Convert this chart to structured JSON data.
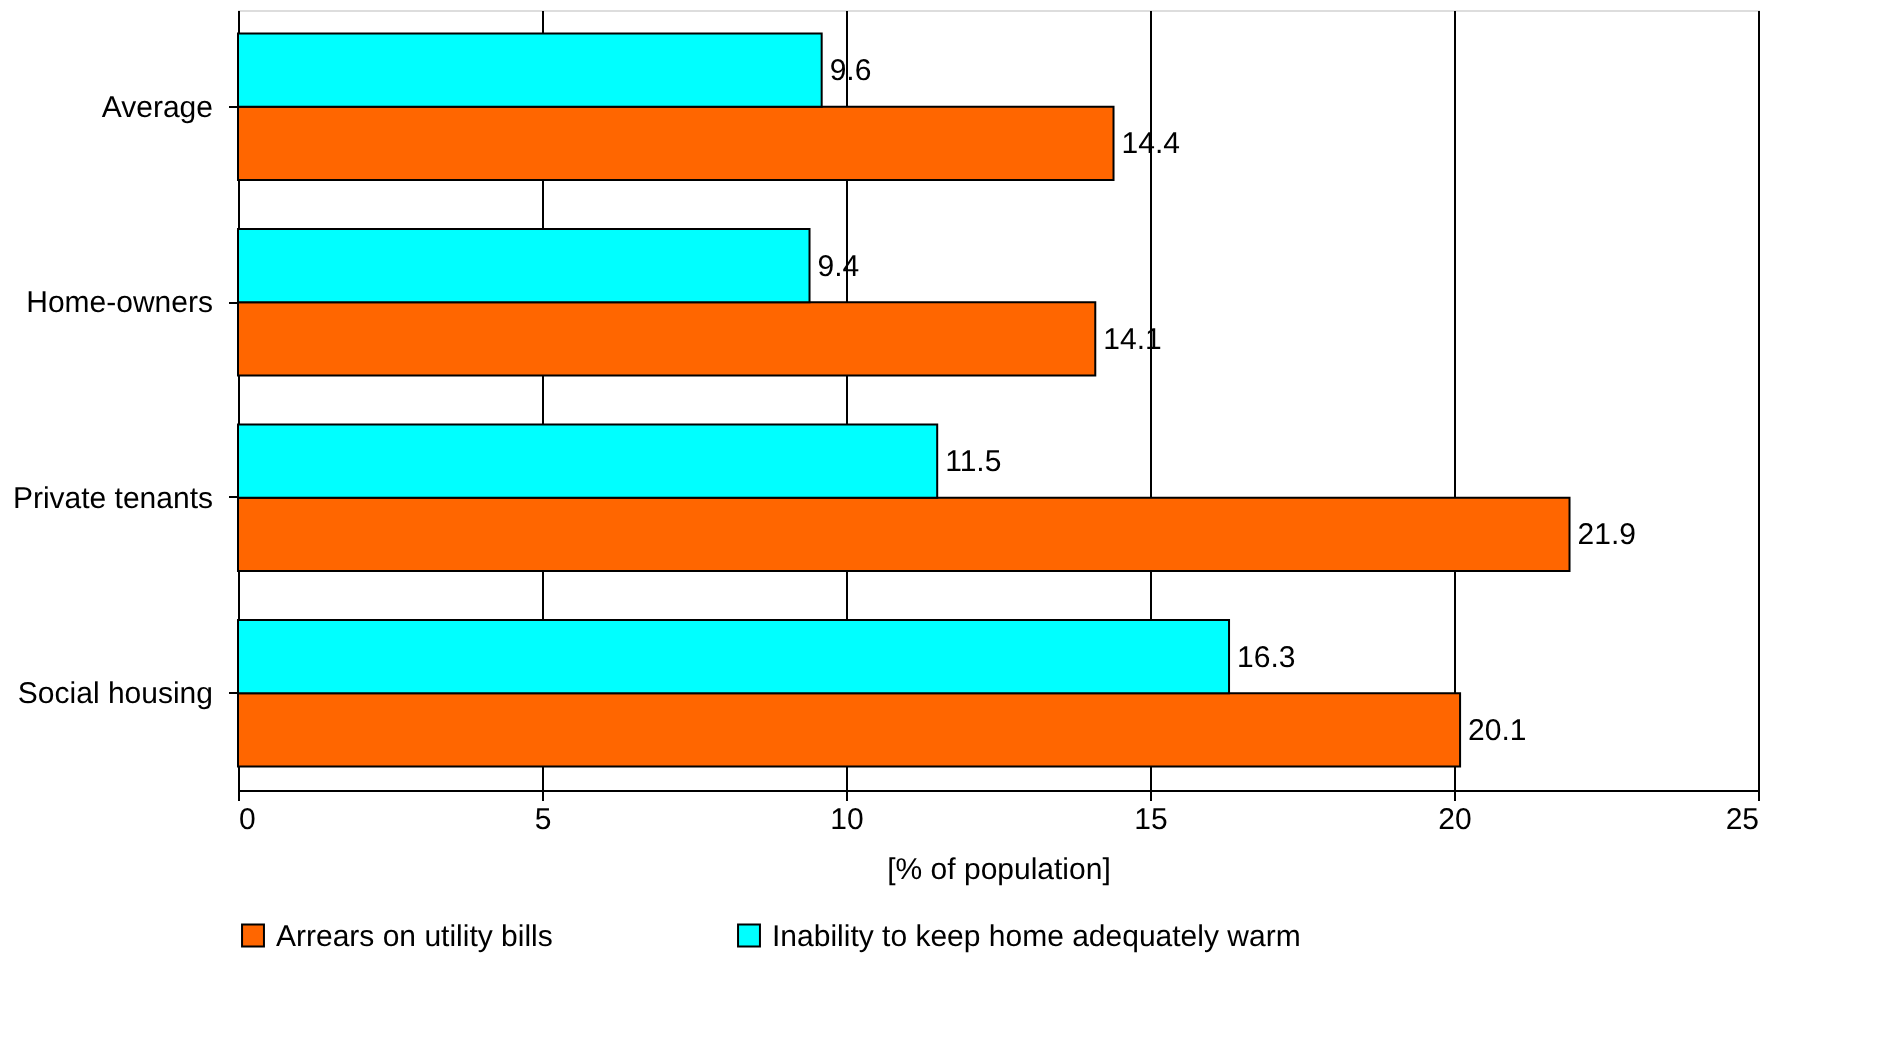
{
  "chart_data": {
    "type": "bar",
    "orientation": "horizontal",
    "xlabel": "[% of population]",
    "categories": [
      "Average",
      "Home-owners",
      "Private tenants",
      "Social housing"
    ],
    "series": [
      {
        "name": "Arrears on utility bills",
        "color": "#ff6600",
        "values": [
          14.4,
          14.1,
          21.9,
          20.1
        ]
      },
      {
        "name": "Inability to keep home adequately warm",
        "color": "#00ffff",
        "values": [
          9.6,
          9.4,
          11.5,
          16.3
        ]
      }
    ],
    "xlim": [
      0,
      25
    ],
    "xticks": [
      0,
      5,
      10,
      15,
      20,
      25
    ],
    "grid": "x",
    "legend": "bottom",
    "data_labels": true
  }
}
